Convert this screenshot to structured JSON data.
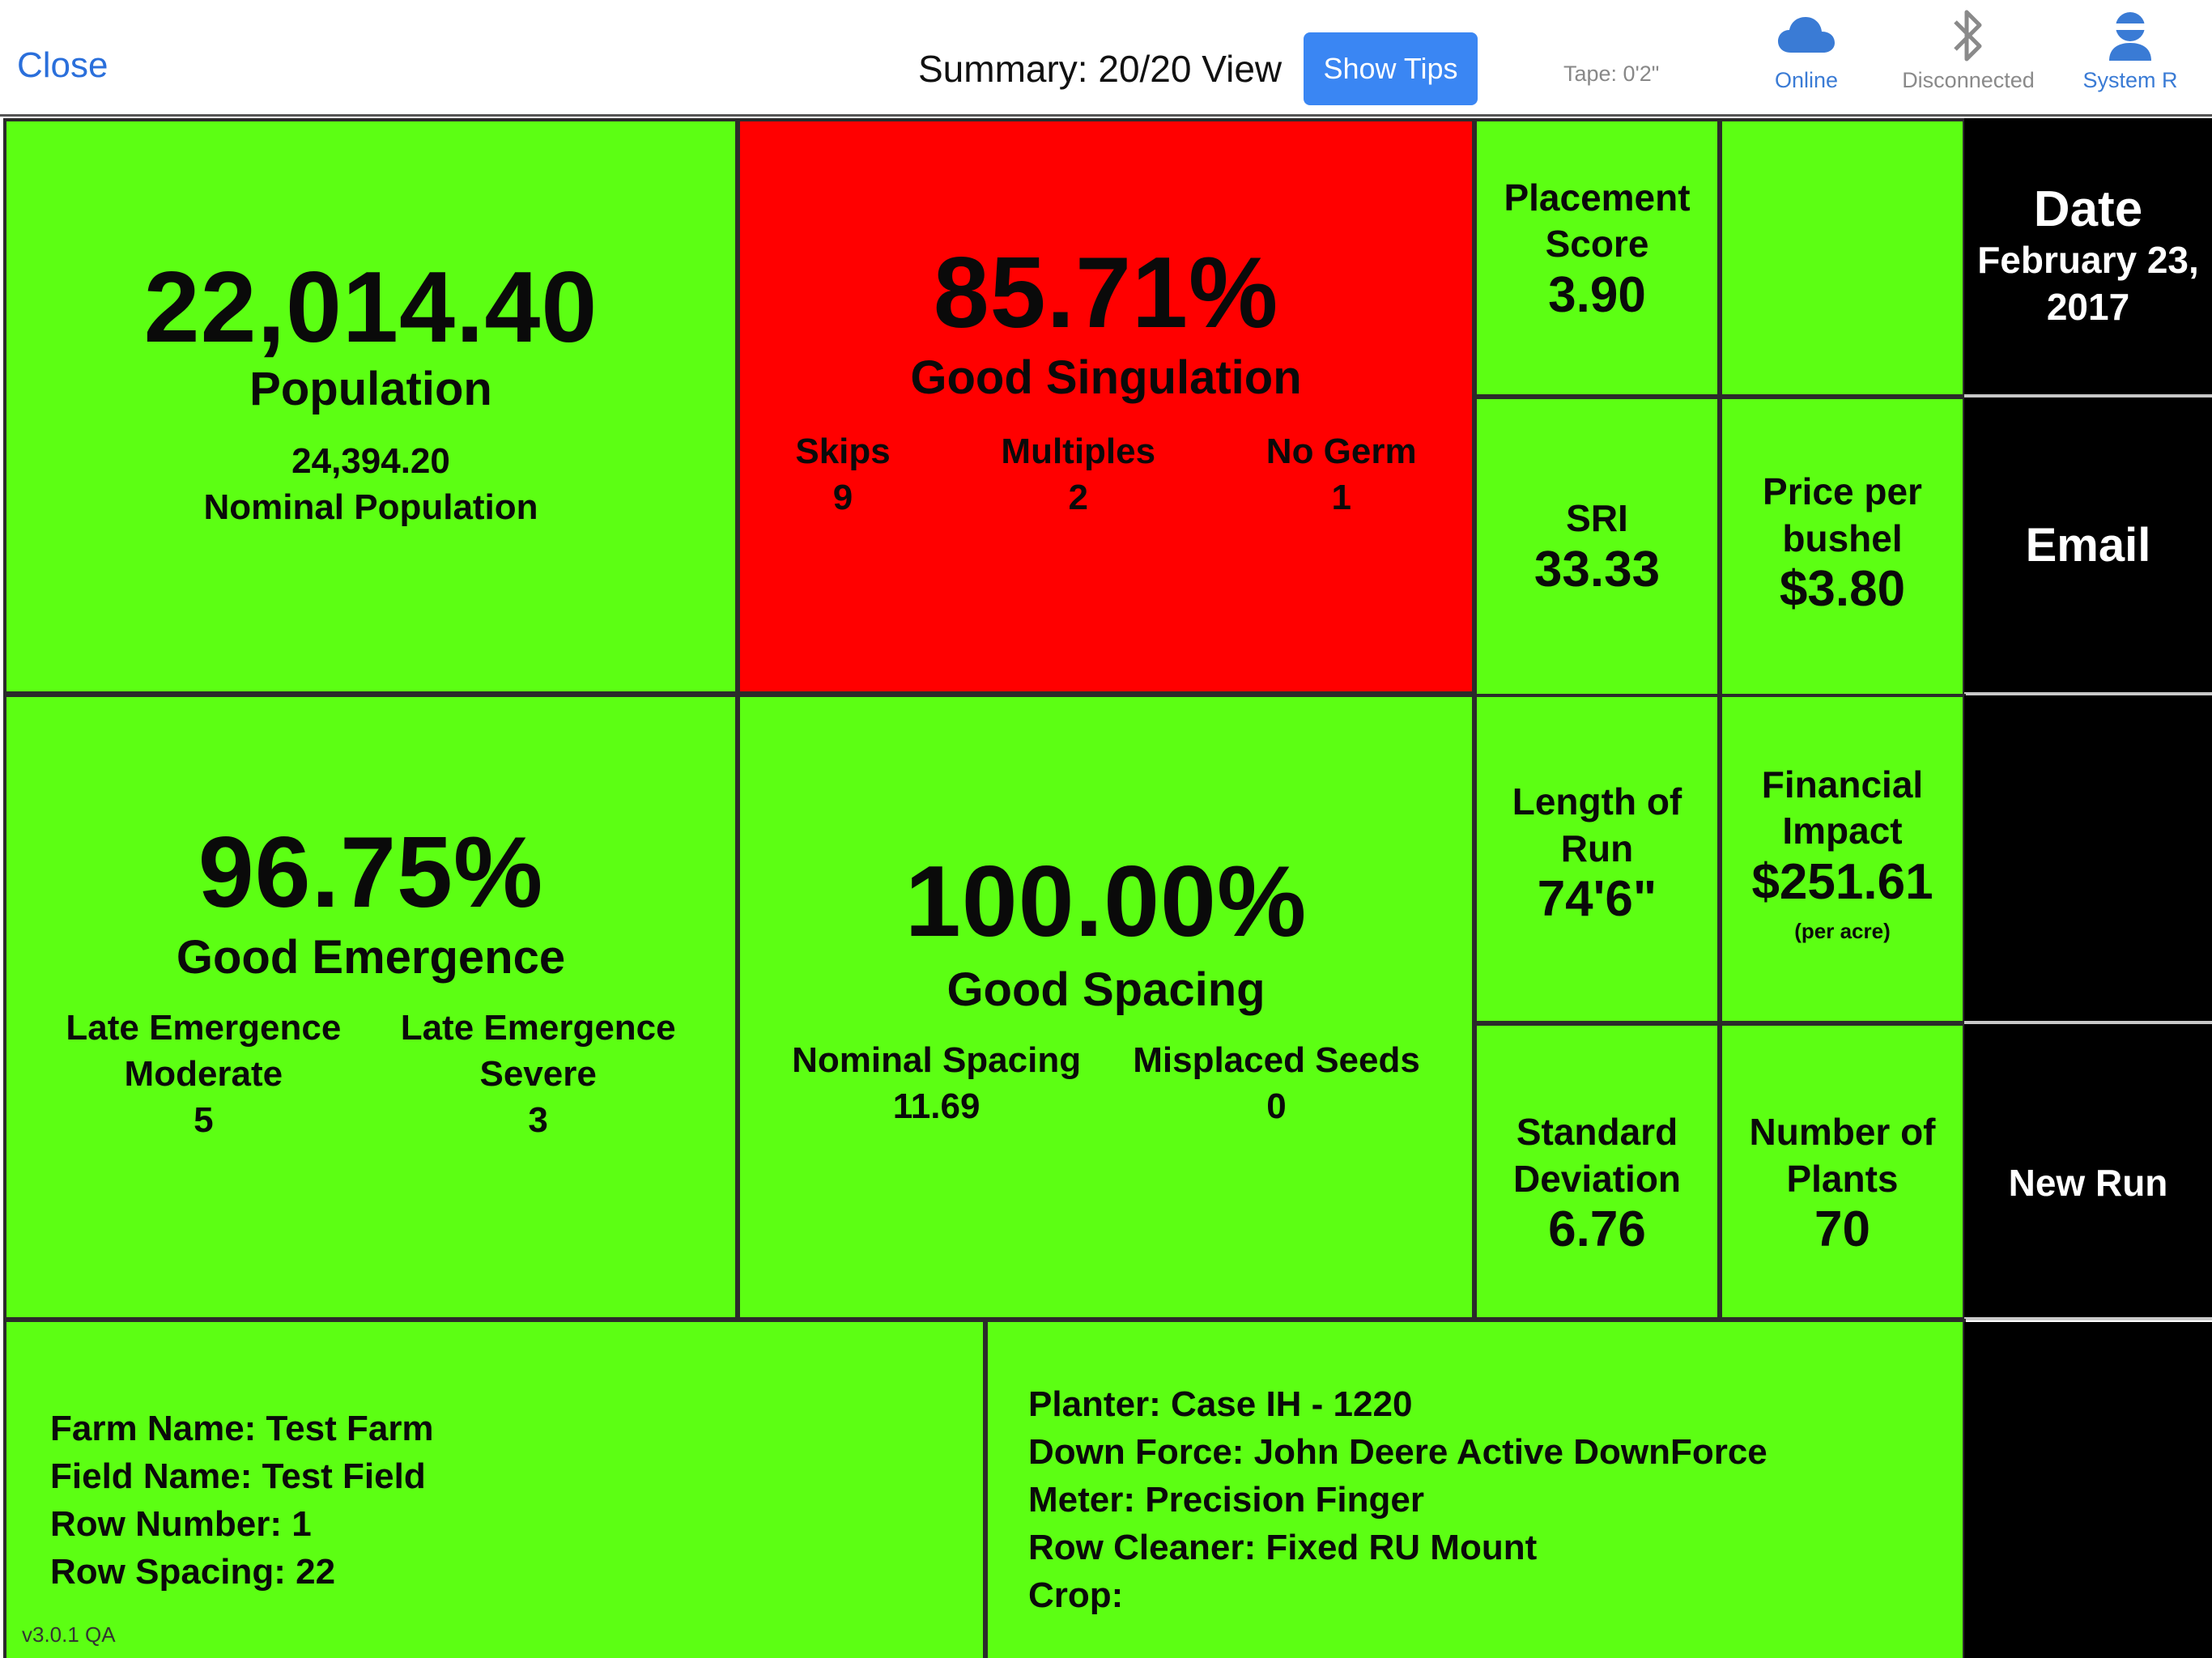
{
  "header": {
    "close_label": "Close",
    "title": "Summary: 20/20 View",
    "tips_label": "Show Tips",
    "tape": "Tape: 0'2\"",
    "status": [
      {
        "label": "Online",
        "icon": "cloud-icon"
      },
      {
        "label": "Disconnected",
        "icon": "bluetooth-icon"
      },
      {
        "label": "System R",
        "icon": "user-icon"
      }
    ]
  },
  "population": {
    "value": "22,014.40",
    "label": "Population",
    "nominal_value": "24,394.20",
    "nominal_label": "Nominal Population"
  },
  "singulation": {
    "value": "85.71%",
    "label": "Good Singulation",
    "skips_label": "Skips",
    "skips": "9",
    "multiples_label": "Multiples",
    "multiples": "2",
    "nogerm_label": "No Germ",
    "nogerm": "1"
  },
  "placement": {
    "title_line1": "Placement",
    "title_line2": "Score",
    "value": "3.90"
  },
  "sri": {
    "title": "SRI",
    "value": "33.33"
  },
  "price": {
    "title_line1": "Price per",
    "title_line2": "bushel",
    "value": "$3.80"
  },
  "date": {
    "title": "Date",
    "line1": "February 23,",
    "line2": "2017"
  },
  "email": {
    "label": "Email"
  },
  "emergence": {
    "value": "96.75%",
    "label": "Good Emergence",
    "moderate_line1": "Late Emergence",
    "moderate_line2": "Moderate",
    "moderate": "5",
    "severe_line1": "Late Emergence",
    "severe_line2": "Severe",
    "severe": "3"
  },
  "spacing": {
    "value": "100.00%",
    "label": "Good Spacing",
    "nominal_label": "Nominal Spacing",
    "nominal": "11.69",
    "misplaced_label": "Misplaced Seeds",
    "misplaced": "0"
  },
  "length": {
    "title_line1": "Length of",
    "title_line2": "Run",
    "value": "74'6\""
  },
  "financial": {
    "title_line1": "Financial",
    "title_line2": "Impact",
    "value": "$251.61",
    "unit": "(per acre)"
  },
  "stddev": {
    "title_line1": "Standard",
    "title_line2": "Deviation",
    "value": "6.76"
  },
  "plants": {
    "title_line1": "Number of",
    "title_line2": "Plants",
    "value": "70"
  },
  "new_run": {
    "label": "New Run"
  },
  "farm_info": [
    "Farm Name: Test Farm",
    "Field Name: Test Field",
    "Row Number: 1",
    "Row Spacing: 22"
  ],
  "planter_info": [
    "Planter: Case IH - 1220",
    "Down Force: John Deere Active DownForce",
    "Meter: Precision Finger",
    "Row Cleaner: Fixed RU Mount",
    "Crop:"
  ],
  "version": "v3.0.1 QA",
  "colors": {
    "good": "#5cff13",
    "bad": "#ff0000",
    "accent": "#3a86f3",
    "panel": "#000000"
  }
}
